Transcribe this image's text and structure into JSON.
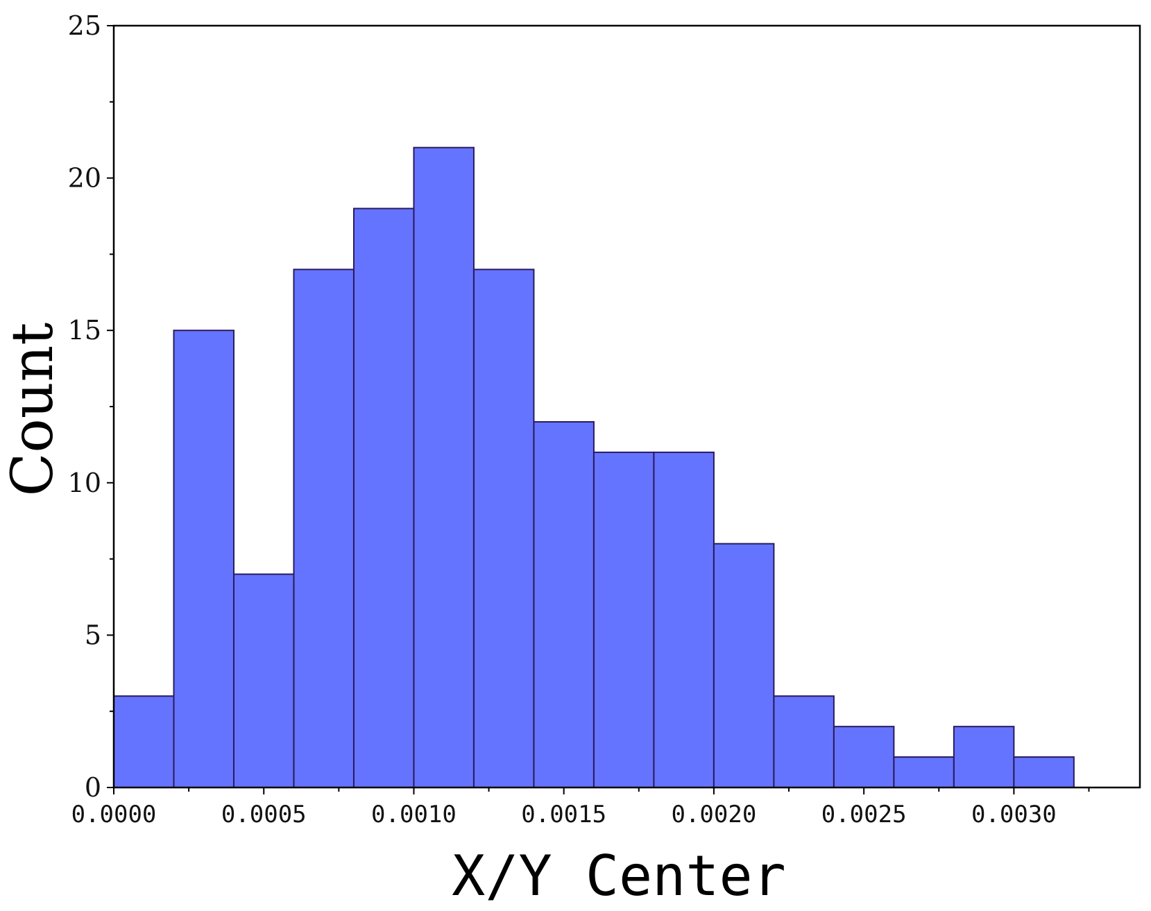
{
  "chart_data": {
    "type": "bar",
    "subtype": "histogram",
    "xlabel": "X/Y Center",
    "ylabel": "Count",
    "bin_width": 0.0002,
    "bins": [
      {
        "start": 0.0,
        "end": 0.0002,
        "count": 3
      },
      {
        "start": 0.0002,
        "end": 0.0004,
        "count": 15
      },
      {
        "start": 0.0004,
        "end": 0.0006,
        "count": 7
      },
      {
        "start": 0.0006,
        "end": 0.0008,
        "count": 17
      },
      {
        "start": 0.0008,
        "end": 0.001,
        "count": 19
      },
      {
        "start": 0.001,
        "end": 0.0012,
        "count": 21
      },
      {
        "start": 0.0012,
        "end": 0.0014,
        "count": 17
      },
      {
        "start": 0.0014,
        "end": 0.0016,
        "count": 12
      },
      {
        "start": 0.0016,
        "end": 0.0018,
        "count": 11
      },
      {
        "start": 0.0018,
        "end": 0.002,
        "count": 11
      },
      {
        "start": 0.002,
        "end": 0.0022,
        "count": 8
      },
      {
        "start": 0.0022,
        "end": 0.0024,
        "count": 3
      },
      {
        "start": 0.0024,
        "end": 0.0026,
        "count": 2
      },
      {
        "start": 0.0026,
        "end": 0.0028,
        "count": 1
      },
      {
        "start": 0.0028,
        "end": 0.003,
        "count": 2
      },
      {
        "start": 0.003,
        "end": 0.0032,
        "count": 1
      }
    ],
    "xlim": [
      0.0,
      0.00342
    ],
    "ylim": [
      0,
      25
    ],
    "xticks": [
      0.0,
      0.0005,
      0.001,
      0.0015,
      0.002,
      0.0025,
      0.003
    ],
    "xtick_labels": [
      "0.0000",
      "0.0005",
      "0.0010",
      "0.0015",
      "0.0020",
      "0.0025",
      "0.0030"
    ],
    "yticks": [
      0,
      5,
      10,
      15,
      20,
      25
    ],
    "ytick_labels": [
      "0",
      "5",
      "10",
      "15",
      "20",
      "25"
    ],
    "grid": false,
    "legend": "none",
    "colors": {
      "bar_fill": "#6574ff",
      "bar_edge": "#2a1a5e",
      "axis": "#000000"
    }
  }
}
